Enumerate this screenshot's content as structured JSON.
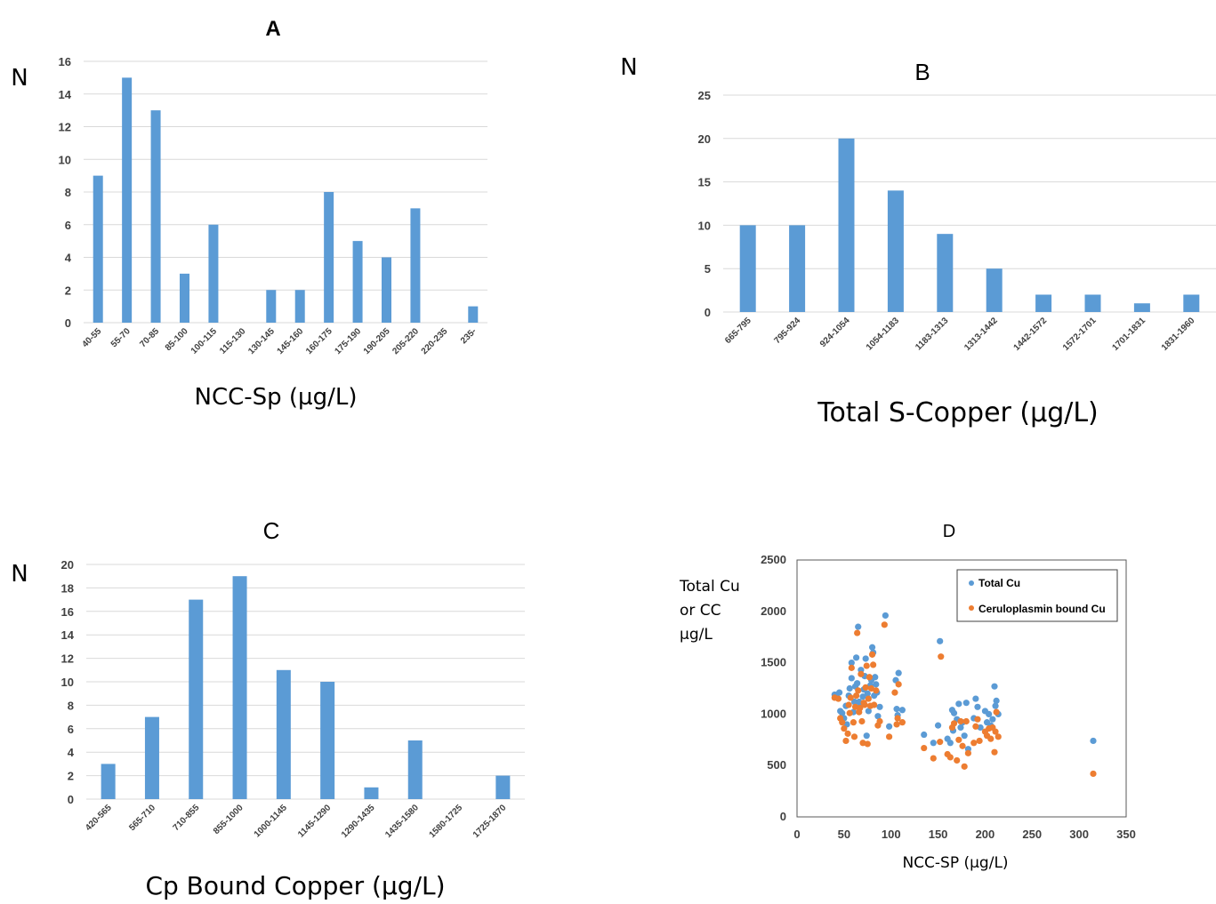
{
  "chart_data": [
    {
      "panel": "A",
      "type": "bar",
      "title": "A",
      "xlabel": "NCC-Sp (µg/L)",
      "ylabel": "N",
      "ylim": [
        0,
        16
      ],
      "yticks": [
        0,
        2,
        4,
        6,
        8,
        10,
        12,
        14,
        16
      ],
      "grid": true,
      "color": "#5B9BD5",
      "categories": [
        "40-55",
        "55-70",
        "70-85",
        "85-100",
        "100-115",
        "115-130",
        "130-145",
        "145-160",
        "160-175",
        "175-190",
        "190-205",
        "205-220",
        "220-235",
        "235-"
      ],
      "values": [
        9,
        15,
        13,
        3,
        6,
        0,
        2,
        2,
        8,
        5,
        4,
        7,
        0,
        1
      ]
    },
    {
      "panel": "B",
      "type": "bar",
      "title": "B",
      "xlabel": "Total S-Copper (µg/L)",
      "ylabel": "N",
      "ylim": [
        0,
        25
      ],
      "yticks": [
        0,
        5,
        10,
        15,
        20,
        25
      ],
      "grid": true,
      "color": "#5B9BD5",
      "categories": [
        "665-795",
        "795-924",
        "924-1054",
        "1054-1183",
        "1183-1313",
        "1313-1442",
        "1442-1572",
        "1572-1701",
        "1701-1831",
        "1831-1960"
      ],
      "values": [
        10,
        10,
        20,
        14,
        9,
        5,
        2,
        2,
        1,
        2
      ]
    },
    {
      "panel": "C",
      "type": "bar",
      "title": "C",
      "xlabel": "Cp Bound Copper (µg/L)",
      "ylabel": "N",
      "ylim": [
        0,
        20
      ],
      "yticks": [
        0,
        2,
        4,
        6,
        8,
        10,
        12,
        14,
        16,
        18,
        20
      ],
      "grid": true,
      "color": "#5B9BD5",
      "categories": [
        "420-565",
        "565-710",
        "710-855",
        "855-1000",
        "1000-1145",
        "1145-1290",
        "1290-1435",
        "1435-1580",
        "1580-1725",
        "1725-1870"
      ],
      "values": [
        3,
        7,
        17,
        19,
        11,
        10,
        1,
        5,
        0,
        2
      ]
    },
    {
      "panel": "D",
      "type": "scatter",
      "title": "D",
      "xlabel": "NCC-SP (µg/L)",
      "ylabel": [
        "Total Cu",
        "or CC",
        "µg/L"
      ],
      "xlim": [
        0,
        350
      ],
      "ylim": [
        0,
        2500
      ],
      "xticks": [
        0,
        50,
        100,
        150,
        200,
        250,
        300,
        350
      ],
      "yticks": [
        0,
        500,
        1000,
        1500,
        2000,
        2500
      ],
      "grid": false,
      "legend_position": "top-right",
      "series": [
        {
          "name": "Total Cu",
          "color": "#5B9BD5",
          "points": [
            [
              40,
              1190
            ],
            [
              42,
              1170
            ],
            [
              45,
              1210
            ],
            [
              46,
              1030
            ],
            [
              48,
              1010
            ],
            [
              50,
              960
            ],
            [
              52,
              1080
            ],
            [
              53,
              900
            ],
            [
              55,
              1180
            ],
            [
              56,
              1250
            ],
            [
              58,
              1350
            ],
            [
              58,
              1500
            ],
            [
              60,
              1020
            ],
            [
              61,
              1120
            ],
            [
              62,
              1270
            ],
            [
              63,
              1550
            ],
            [
              64,
              1300
            ],
            [
              65,
              1850
            ],
            [
              66,
              1120
            ],
            [
              67,
              1080
            ],
            [
              68,
              1430
            ],
            [
              70,
              1170
            ],
            [
              71,
              1240
            ],
            [
              72,
              1370
            ],
            [
              73,
              1540
            ],
            [
              74,
              790
            ],
            [
              75,
              1200
            ],
            [
              76,
              1030
            ],
            [
              78,
              1280
            ],
            [
              79,
              1330
            ],
            [
              80,
              1650
            ],
            [
              81,
              1600
            ],
            [
              82,
              1180
            ],
            [
              83,
              1360
            ],
            [
              84,
              1290
            ],
            [
              85,
              1210
            ],
            [
              86,
              980
            ],
            [
              88,
              1070
            ],
            [
              94,
              1960
            ],
            [
              98,
              880
            ],
            [
              105,
              1330
            ],
            [
              106,
              1050
            ],
            [
              107,
              990
            ],
            [
              108,
              1400
            ],
            [
              112,
              1040
            ],
            [
              135,
              800
            ],
            [
              145,
              720
            ],
            [
              150,
              890
            ],
            [
              152,
              1710
            ],
            [
              160,
              760
            ],
            [
              163,
              720
            ],
            [
              165,
              1040
            ],
            [
              166,
              840
            ],
            [
              167,
              1010
            ],
            [
              170,
              950
            ],
            [
              172,
              1100
            ],
            [
              174,
              870
            ],
            [
              176,
              920
            ],
            [
              178,
              790
            ],
            [
              180,
              1110
            ],
            [
              182,
              660
            ],
            [
              188,
              960
            ],
            [
              190,
              1150
            ],
            [
              192,
              1070
            ],
            [
              195,
              870
            ],
            [
              200,
              1030
            ],
            [
              202,
              920
            ],
            [
              204,
              1000
            ],
            [
              206,
              890
            ],
            [
              208,
              950
            ],
            [
              210,
              1270
            ],
            [
              211,
              1080
            ],
            [
              212,
              1130
            ],
            [
              214,
              1000
            ],
            [
              315,
              740
            ]
          ]
        },
        {
          "name": "Ceruloplasmin bound Cu",
          "color": "#ED7D31",
          "points": [
            [
              40,
              1160
            ],
            [
              44,
              1150
            ],
            [
              46,
              960
            ],
            [
              48,
              920
            ],
            [
              50,
              860
            ],
            [
              52,
              740
            ],
            [
              54,
              810
            ],
            [
              55,
              1090
            ],
            [
              56,
              1010
            ],
            [
              57,
              1160
            ],
            [
              58,
              1450
            ],
            [
              60,
              920
            ],
            [
              61,
              780
            ],
            [
              62,
              1070
            ],
            [
              63,
              1180
            ],
            [
              64,
              1790
            ],
            [
              65,
              1230
            ],
            [
              66,
              1020
            ],
            [
              67,
              1060
            ],
            [
              68,
              1390
            ],
            [
              69,
              930
            ],
            [
              70,
              720
            ],
            [
              71,
              1110
            ],
            [
              72,
              1090
            ],
            [
              73,
              1260
            ],
            [
              74,
              1470
            ],
            [
              75,
              710
            ],
            [
              76,
              1150
            ],
            [
              77,
              1360
            ],
            [
              78,
              1080
            ],
            [
              79,
              1250
            ],
            [
              80,
              1580
            ],
            [
              81,
              1480
            ],
            [
              82,
              1090
            ],
            [
              84,
              1230
            ],
            [
              86,
              890
            ],
            [
              88,
              930
            ],
            [
              93,
              1870
            ],
            [
              98,
              780
            ],
            [
              104,
              1210
            ],
            [
              106,
              900
            ],
            [
              107,
              960
            ],
            [
              108,
              1290
            ],
            [
              112,
              920
            ],
            [
              135,
              670
            ],
            [
              145,
              570
            ],
            [
              152,
              730
            ],
            [
              153,
              1560
            ],
            [
              160,
              610
            ],
            [
              163,
              580
            ],
            [
              165,
              870
            ],
            [
              167,
              910
            ],
            [
              170,
              550
            ],
            [
              172,
              750
            ],
            [
              174,
              930
            ],
            [
              176,
              690
            ],
            [
              178,
              490
            ],
            [
              180,
              930
            ],
            [
              182,
              620
            ],
            [
              188,
              720
            ],
            [
              190,
              880
            ],
            [
              192,
              950
            ],
            [
              194,
              740
            ],
            [
              200,
              830
            ],
            [
              202,
              790
            ],
            [
              204,
              860
            ],
            [
              206,
              760
            ],
            [
              208,
              870
            ],
            [
              210,
              630
            ],
            [
              211,
              830
            ],
            [
              212,
              1020
            ],
            [
              214,
              780
            ],
            [
              315,
              420
            ]
          ]
        }
      ]
    }
  ]
}
